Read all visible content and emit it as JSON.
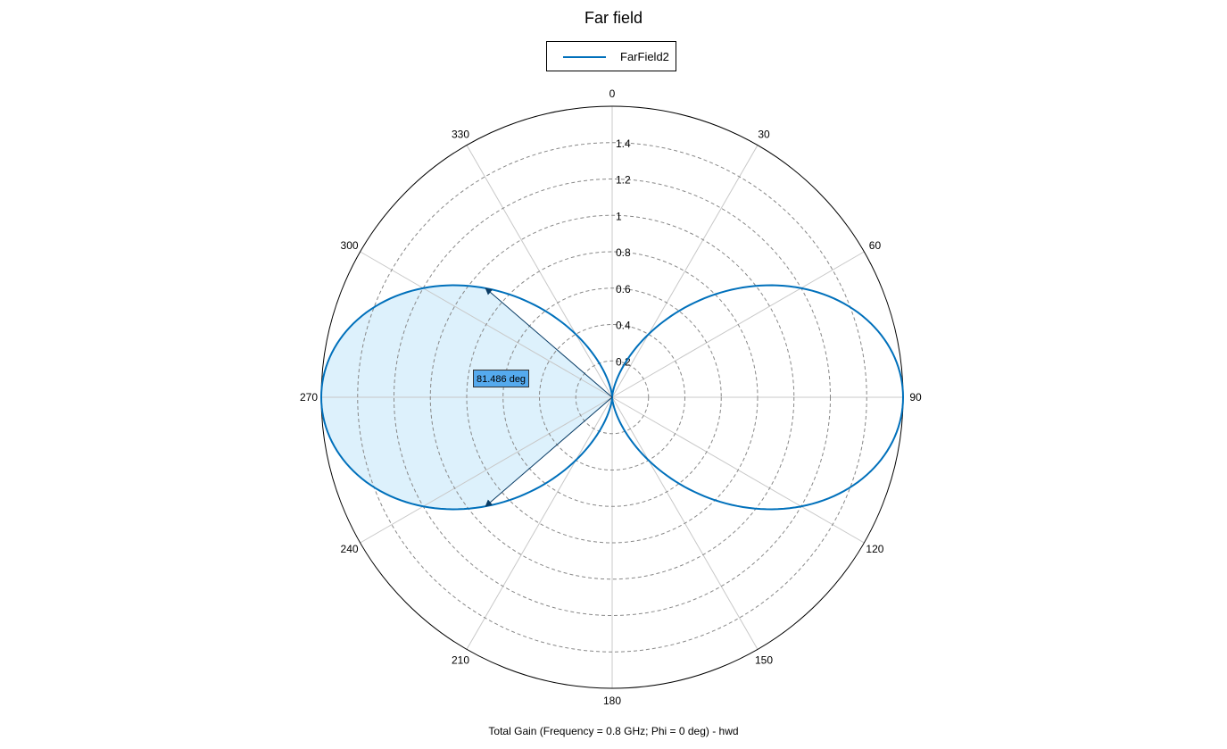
{
  "chart_data": {
    "type": "polar-line",
    "title": "Far field",
    "subtitle": "Total Gain (Frequency = 0.8 GHz; Phi = 0 deg) - hwd",
    "rlim": [
      0,
      1.6
    ],
    "radial_ticks": [
      0.2,
      0.4,
      0.6,
      0.8,
      1,
      1.2,
      1.4
    ],
    "radial_grid": [
      0.2,
      0.4,
      0.6,
      0.8,
      1.0,
      1.2,
      1.4
    ],
    "angular_ticks": [
      0,
      30,
      60,
      90,
      120,
      150,
      180,
      210,
      240,
      270,
      300,
      330
    ],
    "angle_zero": "top",
    "angle_direction": "clockwise",
    "grid": true,
    "legend": {
      "position": "top-center",
      "entries": [
        "FarField2"
      ]
    },
    "series": [
      {
        "name": "FarField2",
        "color": "#0070bb",
        "pattern": "sin2",
        "max_gain": 1.6,
        "theta_deg": [
          0,
          15,
          30,
          45,
          60,
          75,
          90,
          105,
          120,
          135,
          150,
          165,
          180,
          195,
          210,
          225,
          240,
          255,
          270,
          285,
          300,
          315,
          330,
          345
        ],
        "gain": [
          0.0,
          0.107,
          0.4,
          0.8,
          1.2,
          1.493,
          1.6,
          1.493,
          1.2,
          0.8,
          0.4,
          0.107,
          0.0,
          0.107,
          0.4,
          0.8,
          1.2,
          1.493,
          1.6,
          1.493,
          1.2,
          0.8,
          0.4,
          0.107
        ]
      }
    ],
    "annotation": {
      "label": "81.486 deg",
      "kind": "beamwidth",
      "center_deg": 270,
      "start_deg": 229.257,
      "end_deg": 310.743,
      "fill_color": "#ddf1fc",
      "box_color": "#55aaee"
    }
  }
}
